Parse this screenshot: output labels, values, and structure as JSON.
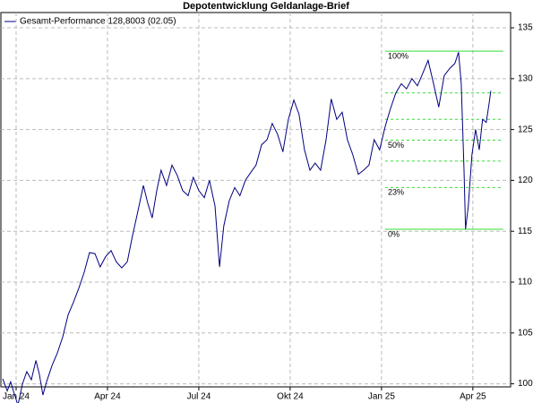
{
  "chart_data": {
    "type": "line",
    "title": "Depotentwicklung Geldanlage-Brief",
    "series": [
      {
        "name": "Gesamt-Performance 128,8003 (02.05)",
        "color": "#000080",
        "x": [
          -0.44,
          -0.29,
          -0.18,
          -0.06,
          0.06,
          0.21,
          0.35,
          0.5,
          0.65,
          0.76,
          0.88,
          1.0,
          1.18,
          1.35,
          1.53,
          1.71,
          1.88,
          2.06,
          2.24,
          2.41,
          2.59,
          2.76,
          2.94,
          3.12,
          3.29,
          3.47,
          3.65,
          3.82,
          4.0,
          4.18,
          4.32,
          4.47,
          4.62,
          4.76,
          4.94,
          5.12,
          5.29,
          5.47,
          5.65,
          5.82,
          6.0,
          6.18,
          6.35,
          6.53,
          6.68,
          6.82,
          7.0,
          7.18,
          7.35,
          7.53,
          7.71,
          7.88,
          8.06,
          8.24,
          8.41,
          8.59,
          8.76,
          8.94,
          9.12,
          9.29,
          9.47,
          9.65,
          9.82,
          10.0,
          10.18,
          10.35,
          10.53,
          10.71,
          10.88,
          11.06,
          11.24,
          11.41,
          11.59,
          11.76,
          11.94,
          12.12,
          12.29,
          12.47,
          12.65,
          12.82,
          13.0,
          13.18,
          13.35,
          13.53,
          13.71,
          13.88,
          14.06,
          14.24,
          14.41,
          14.53,
          14.62,
          14.71,
          14.76,
          14.85,
          14.97,
          15.09,
          15.21,
          15.32,
          15.44,
          15.53,
          15.59
        ],
        "values": [
          100.5,
          99.3,
          100.2,
          99.0,
          97.9,
          100.0,
          101.2,
          100.4,
          102.3,
          101.0,
          98.9,
          100.2,
          101.8,
          103.0,
          104.6,
          106.8,
          108.0,
          109.4,
          111.0,
          112.9,
          112.8,
          111.5,
          112.5,
          113.1,
          112.0,
          111.4,
          112.0,
          114.5,
          117.0,
          119.5,
          117.8,
          116.3,
          119.0,
          121.0,
          119.5,
          121.5,
          120.5,
          119.0,
          118.5,
          120.3,
          119.0,
          118.3,
          120.0,
          117.5,
          111.5,
          115.5,
          118.0,
          119.3,
          118.5,
          120.0,
          120.8,
          121.5,
          123.5,
          124.0,
          125.6,
          124.5,
          122.8,
          126.0,
          127.9,
          126.5,
          123.0,
          121.0,
          121.7,
          121.0,
          124.0,
          128.0,
          126.0,
          126.7,
          124.0,
          122.5,
          120.6,
          121.0,
          121.5,
          124.0,
          123.0,
          125.3,
          127.0,
          128.6,
          129.5,
          129.0,
          130.0,
          129.3,
          130.5,
          131.8,
          129.5,
          127.2,
          130.3,
          131.0,
          131.5,
          132.6,
          129.5,
          121.0,
          115.2,
          117.5,
          122.5,
          125.0,
          123.0,
          126.0,
          125.7,
          127.5,
          128.8
        ]
      }
    ],
    "fib_color": "#33dd33",
    "fib_x": [
      12.12,
      16.0
    ],
    "fib_levels": [
      {
        "value": 115.2,
        "label": "0%"
      },
      {
        "value": 119.3,
        "label": "23%"
      },
      {
        "value": 121.9
      },
      {
        "value": 123.95,
        "label": "50%"
      },
      {
        "value": 126.0
      },
      {
        "value": 128.6
      },
      {
        "value": 132.7,
        "label": "100%"
      }
    ],
    "xlim": [
      -0.5,
      16.24
    ],
    "xticks": [
      {
        "value": 0,
        "label": "Jan 24"
      },
      {
        "value": 3,
        "label": "Apr 24"
      },
      {
        "value": 6,
        "label": "Jul 24"
      },
      {
        "value": 9,
        "label": "Okt 24"
      },
      {
        "value": 12,
        "label": "Jan 25"
      },
      {
        "value": 15,
        "label": "Apr 25"
      }
    ],
    "ylim": [
      99.7,
      136.5
    ],
    "yticks": [
      100,
      105,
      110,
      115,
      120,
      125,
      130,
      135
    ],
    "grid": true
  }
}
